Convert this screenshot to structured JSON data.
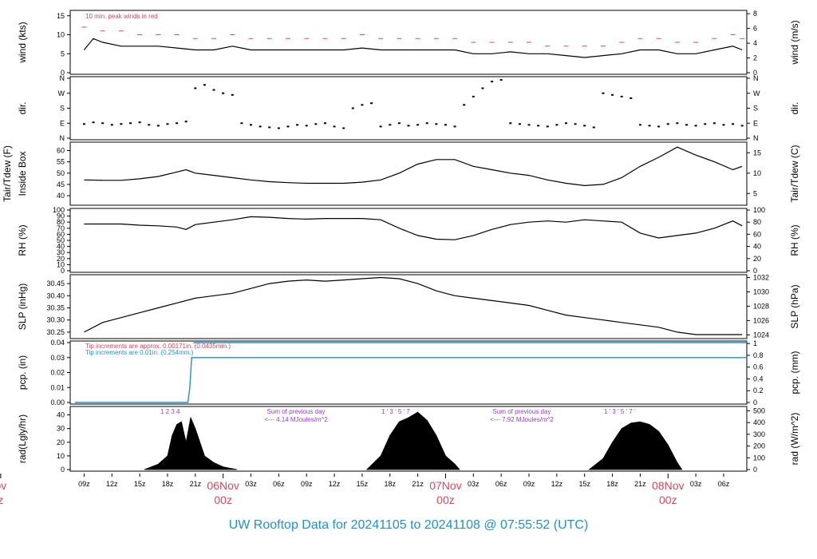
{
  "footer": {
    "title": "UW Rooftop Data for 20241105  to  20241108 @ 07:55:52  (UTC)"
  },
  "colors": {
    "line": "#000000",
    "peak": "#e0455a",
    "precip_blue": "#1f8fd6",
    "annotation_purple": "#9b3ad6",
    "date_red": "#e0455a"
  },
  "time_axis": {
    "hour_labels": [
      "09z",
      "12z",
      "15z",
      "18z",
      "21z",
      "03z",
      "06z",
      "09z",
      "12z",
      "15z",
      "18z",
      "21z",
      "03z",
      "06z",
      "09z",
      "12z",
      "15z",
      "18z",
      "21z",
      "03z",
      "06z"
    ],
    "day_labels": [
      {
        "day": "ov",
        "hour": "z"
      },
      {
        "day": "06Nov",
        "hour": "00z"
      },
      {
        "day": "07Nov",
        "hour": "00z"
      },
      {
        "day": "08Nov",
        "hour": "00z"
      }
    ]
  },
  "panels": {
    "wind": {
      "left_label": "wind (kts)",
      "right_label": "wind (m/s)",
      "left_ticks": [
        "0",
        "5",
        "10",
        "15"
      ],
      "right_ticks": [
        "0",
        "2",
        "4",
        "6",
        "8"
      ],
      "note": "10 min. peak winds in red"
    },
    "dir": {
      "left_label": "dir.",
      "right_label": "dir.",
      "ticks": [
        "N",
        "E",
        "S",
        "W",
        "N"
      ]
    },
    "temp": {
      "left_label_1": "Tair/Tdew (F)",
      "left_label_2": "Inside Box",
      "right_label": "Tair/Tdew (C)",
      "left_ticks": [
        "40",
        "45",
        "50",
        "55",
        "60"
      ],
      "right_ticks": [
        "5",
        "10",
        "15"
      ]
    },
    "rh": {
      "left_label": "RH (%)",
      "right_label": "RH (%)",
      "left_ticks": [
        "0",
        "10",
        "20",
        "30",
        "40",
        "50",
        "60",
        "70",
        "80",
        "90",
        "100"
      ],
      "right_ticks": [
        "0",
        "20",
        "40",
        "60",
        "80",
        "100"
      ]
    },
    "slp": {
      "left_label": "SLP (inHg)",
      "right_label": "SLP (hPa)",
      "left_ticks": [
        "30.25",
        "30.30",
        "30.35",
        "30.40",
        "30.45"
      ],
      "right_ticks": [
        "1024",
        "1026",
        "1028",
        "1030",
        "1032"
      ]
    },
    "pcp": {
      "left_label": "pcp. (in)",
      "right_label": "pcp. (mm)",
      "left_ticks": [
        "0.00",
        "0.01",
        "0.02",
        "0.03",
        "0.04"
      ],
      "right_ticks": [
        "0",
        "0.2",
        "0.4",
        "0.6",
        "0.8",
        "1"
      ],
      "note1": "Tip increments are approx. 0.00171in. (0.0435mm.)",
      "note2": "Tip increments are 0.01in.  (0.254mm.)"
    },
    "rad": {
      "left_label": "rad(Lgly/hr)",
      "right_label": "rad (W/m^2)",
      "left_ticks": [
        "0",
        "10",
        "20",
        "30",
        "40"
      ],
      "right_ticks": [
        "0",
        "100",
        "200",
        "300",
        "400",
        "500"
      ],
      "sum1_title": "Sum of previous day",
      "sum1_value": "<--- 4.14 MJoules/m^2",
      "sum2_title": "Sum of previous day",
      "sum2_value": "<--- 7.92 MJoules/m^2",
      "markers1": "1   2   3         4",
      "markers2": "1   ' 3  ' 5  '  7",
      "markers3": "1   ' 3  ' 5  ' 7  '"
    }
  },
  "chart_data": [
    {
      "type": "line",
      "title": "",
      "ylabel": "wind (kts)",
      "y2label": "wind (m/s)",
      "x_unit": "hours after 05Nov 09z",
      "xlim": [
        -1.5,
        71.5
      ],
      "ylim": [
        0,
        16
      ],
      "series": [
        {
          "x": [
            0,
            1,
            2,
            4,
            6,
            8,
            10,
            12,
            14,
            16,
            18,
            20,
            22,
            24,
            26,
            28,
            30,
            32,
            34,
            36,
            38,
            40,
            42,
            44,
            46,
            48,
            50,
            52,
            54,
            56,
            58,
            60,
            62,
            64,
            66,
            68,
            70,
            71
          ],
          "values": [
            6,
            9,
            8,
            7,
            7,
            7,
            6.5,
            6,
            6,
            7,
            6,
            6,
            6,
            6,
            6,
            6,
            6.5,
            6,
            6,
            6,
            6,
            6,
            5,
            5,
            5.5,
            5,
            5,
            4.5,
            4,
            4.5,
            5,
            6,
            6,
            5,
            5,
            6,
            7,
            6
          ]
        },
        {
          "name": "10 min. peak winds in red",
          "x": [
            0,
            2,
            4,
            6,
            8,
            10,
            12,
            14,
            16,
            18,
            20,
            22,
            24,
            26,
            28,
            30,
            32,
            34,
            36,
            38,
            40,
            42,
            44,
            46,
            48,
            50,
            52,
            54,
            56,
            58,
            60,
            62,
            64,
            66,
            68,
            70,
            71
          ],
          "values": [
            12,
            11,
            11,
            10,
            10,
            10,
            9,
            9,
            10,
            9,
            9,
            9,
            9,
            9,
            9,
            10,
            9,
            9,
            9,
            9,
            9,
            8,
            8,
            8,
            8,
            7,
            7,
            7,
            7,
            8,
            9,
            9,
            8,
            8,
            9,
            10,
            9
          ]
        }
      ]
    },
    {
      "type": "scatter",
      "ylabel": "dir.",
      "y_categories": [
        "N",
        "E",
        "S",
        "W",
        "N"
      ],
      "x_unit": "hours after 05Nov 09z",
      "xlim": [
        -1.5,
        71.5
      ],
      "ylim": [
        0,
        360
      ],
      "series": [
        {
          "x": [
            0,
            1,
            2,
            3,
            4,
            5,
            6,
            7,
            8,
            9,
            10,
            11,
            12,
            13,
            14,
            15,
            16,
            17,
            18,
            19,
            20,
            21,
            22,
            23,
            24,
            25,
            26,
            27,
            28,
            29,
            30,
            31,
            32,
            33,
            34,
            35,
            36,
            37,
            38,
            39,
            40,
            41,
            42,
            43,
            44,
            45,
            46,
            47,
            48,
            49,
            50,
            51,
            52,
            53,
            54,
            55,
            56,
            57,
            58,
            59,
            60,
            61,
            62,
            63,
            64,
            65,
            66,
            67,
            68,
            69,
            70,
            71
          ],
          "values": [
            85,
            95,
            90,
            80,
            85,
            90,
            95,
            80,
            75,
            85,
            90,
            100,
            300,
            320,
            290,
            270,
            260,
            90,
            80,
            70,
            65,
            60,
            70,
            80,
            75,
            85,
            90,
            70,
            60,
            180,
            200,
            210,
            70,
            80,
            90,
            75,
            80,
            90,
            85,
            80,
            70,
            200,
            250,
            300,
            340,
            350,
            90,
            85,
            80,
            75,
            70,
            80,
            90,
            85,
            75,
            65,
            270,
            260,
            250,
            240,
            80,
            75,
            70,
            85,
            90,
            80,
            75,
            85,
            90,
            80,
            85,
            75
          ]
        }
      ]
    },
    {
      "type": "line",
      "ylabel": "Tair/Tdew (F)",
      "y2label": "Tair/Tdew (C)",
      "x_unit": "hours after 05Nov 09z",
      "xlim": [
        -1.5,
        71.5
      ],
      "ylim": [
        36.5,
        63
      ],
      "series": [
        {
          "x": [
            0,
            2,
            4,
            6,
            8,
            10,
            11,
            12,
            14,
            16,
            18,
            20,
            22,
            24,
            26,
            28,
            30,
            32,
            34,
            36,
            38,
            40,
            42,
            44,
            46,
            48,
            50,
            52,
            54,
            56,
            58,
            60,
            62,
            64,
            66,
            68,
            70,
            71
          ],
          "values": [
            47,
            46.8,
            46.8,
            47.5,
            48.5,
            50.5,
            51.5,
            50,
            49,
            48,
            47,
            46.2,
            45.8,
            45.5,
            45.5,
            45.5,
            46,
            47,
            50,
            54,
            56,
            56,
            53,
            51.5,
            50,
            49,
            47,
            45.5,
            44.5,
            45,
            48,
            53,
            57,
            61.5,
            58,
            55,
            51.5,
            53
          ]
        }
      ]
    },
    {
      "type": "line",
      "ylabel": "RH (%)",
      "y2label": "RH (%)",
      "x_unit": "hours after 05Nov 09z",
      "xlim": [
        -1.5,
        71.5
      ],
      "ylim": [
        0,
        100
      ],
      "series": [
        {
          "x": [
            0,
            2,
            4,
            6,
            8,
            10,
            11,
            12,
            14,
            16,
            18,
            20,
            22,
            24,
            26,
            28,
            30,
            32,
            34,
            36,
            38,
            40,
            42,
            44,
            46,
            48,
            50,
            52,
            54,
            56,
            58,
            60,
            62,
            64,
            66,
            68,
            70,
            71
          ],
          "values": [
            77,
            77,
            77,
            75,
            74,
            72,
            68,
            76,
            80,
            84,
            89,
            88,
            86,
            85,
            86,
            86,
            86,
            84,
            70,
            58,
            52,
            51,
            58,
            68,
            76,
            80,
            82,
            80,
            84,
            82,
            80,
            62,
            54,
            58,
            62,
            70,
            82,
            74
          ]
        }
      ]
    },
    {
      "type": "line",
      "ylabel": "SLP (inHg)",
      "y2label": "SLP (hPa)",
      "x_unit": "hours after 05Nov 09z",
      "xlim": [
        -1.5,
        71.5
      ],
      "ylim": [
        30.23,
        30.48
      ],
      "series": [
        {
          "x": [
            0,
            2,
            4,
            6,
            8,
            10,
            12,
            14,
            16,
            18,
            20,
            22,
            24,
            26,
            28,
            30,
            32,
            34,
            36,
            38,
            40,
            42,
            44,
            46,
            48,
            50,
            52,
            54,
            56,
            58,
            60,
            62,
            64,
            66,
            68,
            70,
            71
          ],
          "values": [
            30.25,
            30.29,
            30.31,
            30.33,
            30.35,
            30.37,
            30.39,
            30.4,
            30.41,
            30.43,
            30.45,
            30.46,
            30.465,
            30.46,
            30.465,
            30.47,
            30.475,
            30.47,
            30.45,
            30.42,
            30.4,
            30.39,
            30.38,
            30.37,
            30.36,
            30.34,
            30.32,
            30.31,
            30.3,
            30.29,
            30.28,
            30.27,
            30.25,
            30.24,
            30.24,
            30.24,
            30.24
          ]
        }
      ]
    },
    {
      "type": "line",
      "ylabel": "pcp. (in)",
      "y2label": "pcp. (mm)",
      "x_unit": "hours after 05Nov 09z",
      "xlim": [
        -1.5,
        71.5
      ],
      "ylim": [
        0,
        0.04
      ],
      "series": [
        {
          "x": [
            -1,
            11.2,
            11.4,
            11.6,
            71.5
          ],
          "values": [
            0,
            0,
            0.01,
            0.03,
            0.03
          ]
        },
        {
          "x": [
            11.8,
            71.5
          ],
          "values": [
            0.04,
            0.04
          ]
        }
      ]
    },
    {
      "type": "area",
      "ylabel": "rad(Lgly/hr)",
      "y2label": "rad (W/m^2)",
      "x_unit": "hours after 05Nov 09z",
      "xlim": [
        -1.5,
        71.5
      ],
      "ylim": [
        0,
        45
      ],
      "series": [
        {
          "x": [
            6.5,
            8,
            9,
            9.5,
            10,
            10.5,
            11,
            11.5,
            12,
            12.5,
            13,
            14,
            15,
            16.5
          ],
          "values": [
            0,
            4,
            10,
            25,
            33,
            35,
            20,
            38,
            30,
            20,
            10,
            5,
            2,
            0
          ]
        },
        {
          "x": [
            30.5,
            32,
            33,
            34,
            35,
            36,
            37,
            38,
            39,
            40,
            40.5
          ],
          "values": [
            0,
            10,
            25,
            35,
            38,
            42,
            36,
            25,
            10,
            4,
            0
          ]
        },
        {
          "x": [
            54.5,
            56,
            57,
            58,
            59,
            60,
            61,
            62,
            63,
            64,
            64.5
          ],
          "values": [
            0,
            8,
            20,
            30,
            34,
            35,
            33,
            28,
            18,
            5,
            0
          ]
        }
      ]
    }
  ]
}
